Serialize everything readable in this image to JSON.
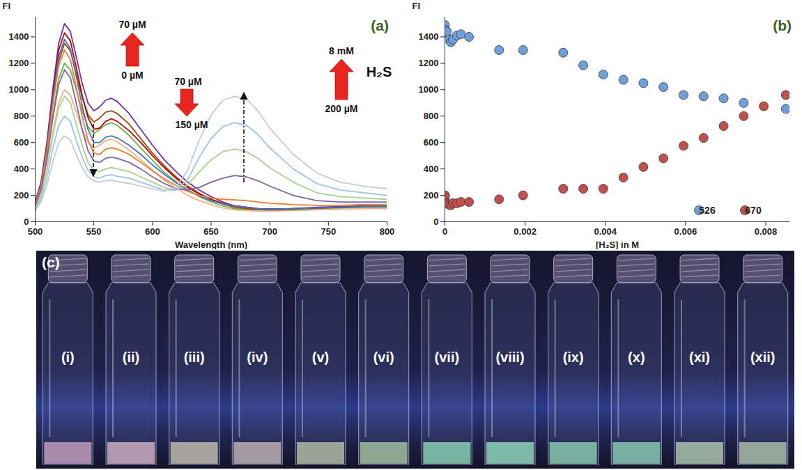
{
  "chart_data": [
    {
      "type": "line",
      "label": "(a)",
      "x_label": "Wavelength (nm)",
      "y_label": "FI",
      "x": [
        500,
        505,
        510,
        515,
        520,
        525,
        530,
        535,
        540,
        545,
        550,
        555,
        560,
        565,
        570,
        580,
        590,
        600,
        610,
        620,
        630,
        640,
        650,
        660,
        670,
        680,
        690,
        700,
        720,
        740,
        760,
        780,
        800
      ],
      "series": [
        {
          "color": "#f4b183",
          "values": [
            100,
            200,
            400,
            670,
            900,
            1000,
            960,
            830,
            700,
            600,
            560,
            580,
            615,
            625,
            605,
            545,
            470,
            390,
            315,
            255,
            200,
            160,
            130,
            105,
            90,
            85,
            80,
            80,
            85,
            90,
            95,
            100,
            100
          ]
        },
        {
          "color": "#70ad47",
          "values": [
            120,
            240,
            480,
            800,
            1080,
            1200,
            1150,
            1000,
            840,
            720,
            670,
            700,
            735,
            750,
            730,
            655,
            560,
            465,
            375,
            305,
            240,
            190,
            150,
            120,
            100,
            95,
            90,
            88,
            92,
            100,
            105,
            110,
            110
          ]
        },
        {
          "color": "#9e480e",
          "values": [
            135,
            270,
            540,
            900,
            1215,
            1350,
            1295,
            1125,
            945,
            810,
            755,
            785,
            830,
            840,
            820,
            740,
            630,
            520,
            425,
            340,
            270,
            215,
            170,
            135,
            110,
            100,
            95,
            92,
            97,
            105,
            110,
            115,
            115
          ]
        },
        {
          "color": "#7030a0",
          "values": [
            150,
            300,
            600,
            1000,
            1350,
            1500,
            1440,
            1250,
            1050,
            900,
            840,
            870,
            920,
            935,
            910,
            820,
            700,
            580,
            470,
            380,
            300,
            240,
            190,
            150,
            120,
            110,
            100,
            95,
            100,
            110,
            115,
            120,
            120
          ]
        },
        {
          "color": "#c00000",
          "values": [
            140,
            290,
            580,
            960,
            1300,
            1430,
            1370,
            1170,
            960,
            790,
            700,
            710,
            760,
            780,
            760,
            690,
            600,
            500,
            410,
            330,
            260,
            210,
            170,
            140,
            120,
            110,
            100,
            95,
            100,
            105,
            110,
            115,
            120
          ]
        },
        {
          "color": "#4472c4",
          "values": [
            140,
            280,
            560,
            930,
            1250,
            1380,
            1310,
            1100,
            880,
            700,
            600,
            600,
            640,
            650,
            635,
            580,
            510,
            430,
            360,
            295,
            240,
            195,
            160,
            135,
            120,
            110,
            100,
            95,
            100,
            105,
            110,
            115,
            120
          ]
        },
        {
          "color": "#ed7d31",
          "values": [
            130,
            270,
            530,
            880,
            1180,
            1300,
            1230,
            1020,
            800,
            620,
            520,
            510,
            550,
            560,
            550,
            510,
            450,
            385,
            325,
            275,
            230,
            200,
            180,
            170,
            165,
            160,
            150,
            140,
            130,
            125,
            125,
            130,
            130
          ]
        },
        {
          "color": "#8064a2",
          "values": [
            120,
            240,
            470,
            780,
            1040,
            1150,
            1090,
            900,
            700,
            540,
            460,
            450,
            480,
            490,
            480,
            450,
            400,
            340,
            290,
            250,
            240,
            260,
            300,
            330,
            350,
            340,
            310,
            270,
            200,
            160,
            150,
            150,
            150
          ]
        },
        {
          "color": "#a9d18e",
          "values": [
            100,
            200,
            390,
            650,
            860,
            950,
            900,
            740,
            580,
            450,
            390,
            380,
            400,
            410,
            400,
            380,
            340,
            300,
            260,
            240,
            280,
            380,
            470,
            530,
            550,
            530,
            480,
            410,
            300,
            220,
            190,
            180,
            170
          ]
        },
        {
          "color": "#9dc3e6",
          "values": [
            90,
            170,
            330,
            550,
            730,
            800,
            760,
            620,
            490,
            390,
            340,
            330,
            350,
            355,
            345,
            330,
            300,
            270,
            240,
            240,
            320,
            490,
            630,
            720,
            750,
            730,
            660,
            560,
            400,
            290,
            240,
            220,
            200
          ]
        },
        {
          "color": "#c9c9d9",
          "values": [
            80,
            150,
            280,
            450,
            600,
            650,
            620,
            510,
            410,
            340,
            310,
            300,
            310,
            315,
            305,
            290,
            270,
            250,
            230,
            260,
            390,
            620,
            810,
            920,
            950,
            930,
            840,
            710,
            510,
            370,
            300,
            270,
            250
          ]
        }
      ],
      "xlim": [
        500,
        800
      ],
      "xticks": [
        500,
        550,
        600,
        650,
        700,
        750,
        800
      ],
      "ylim": [
        0,
        1550
      ],
      "yticks": [
        0,
        200,
        400,
        600,
        800,
        1000,
        1200,
        1400
      ],
      "annotations": [
        "70 µM",
        "0 µM",
        "70 µM",
        "150 µM",
        "8 mM",
        "200 µM",
        "H₂S"
      ]
    },
    {
      "type": "scatter",
      "label": "(b)",
      "x_label": "[H₂S] in M",
      "y_label": "FI",
      "series": [
        {
          "name": "526",
          "color": "#6f9fd8",
          "x": [
            0,
            2e-05,
            0,
            5e-05,
            0.0001,
            0.00015,
            0.0002,
            0.0003,
            0.0004,
            0.0006,
            0.00135,
            0.00195,
            0.00295,
            0.00345,
            0.00395,
            0.00445,
            0.00495,
            0.00545,
            0.00595,
            0.00645,
            0.00695,
            0.00745,
            0.0085
          ],
          "values": [
            1490,
            1450,
            1400,
            1440,
            1380,
            1360,
            1380,
            1410,
            1420,
            1400,
            1300,
            1300,
            1280,
            1185,
            1115,
            1075,
            1050,
            1020,
            960,
            950,
            935,
            900,
            855
          ]
        },
        {
          "name": "670",
          "color": "#c0504d",
          "x": [
            0,
            0,
            5e-05,
            0.0001,
            0.00015,
            0.0002,
            0.0003,
            0.0004,
            0.0006,
            0.00135,
            0.00195,
            0.00295,
            0.00345,
            0.00395,
            0.00445,
            0.00495,
            0.00545,
            0.00595,
            0.00645,
            0.00695,
            0.00745,
            0.00795,
            0.0085
          ],
          "values": [
            200,
            185,
            140,
            130,
            125,
            140,
            140,
            150,
            150,
            170,
            200,
            250,
            250,
            250,
            335,
            415,
            480,
            575,
            635,
            725,
            800,
            875,
            960
          ]
        }
      ],
      "xlim": [
        0,
        0.0086
      ],
      "xticks": [
        0,
        0.002,
        0.004,
        0.006,
        0.008
      ],
      "ylim": [
        0,
        1550
      ],
      "yticks": [
        0,
        200,
        400,
        600,
        800,
        1000,
        1200,
        1400
      ],
      "legend": "bottom-right"
    }
  ],
  "image": {
    "label": "(c)",
    "vials": [
      "(i)",
      "(ii)",
      "(iii)",
      "(iv)",
      "(v)",
      "(vi)",
      "(vii)",
      "(viii)",
      "(ix)",
      "(x)",
      "(xi)",
      "(xii)"
    ],
    "colors": [
      "#c9a3c4",
      "#d4b4c6",
      "#c6c0b0",
      "#c4b7b8",
      "#b9c0a8",
      "#a8c6a0",
      "#8fd6b6",
      "#96dcc0",
      "#8ccfb4",
      "#8fd0b8",
      "#b2c9b0",
      "#b0c4b0"
    ]
  }
}
